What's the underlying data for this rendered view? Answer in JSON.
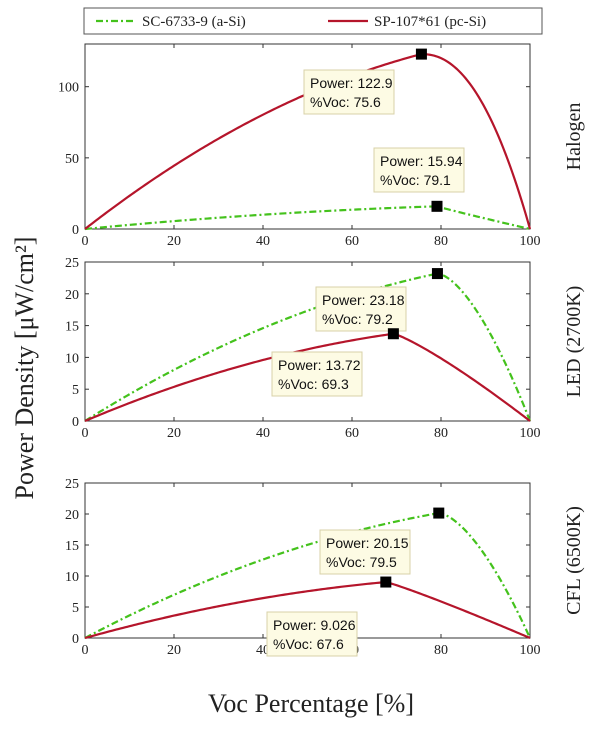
{
  "chart_data": {
    "type": "line",
    "ylabel": "Power Density [μW/cm²]",
    "xlabel": "Voc Percentage [%]",
    "legend": {
      "placement": "top",
      "entries": [
        {
          "name": "SC-6733-9 (a-Si)",
          "color": "#44c21c",
          "style": "dash-dot"
        },
        {
          "name": "SP-107*61 (pc-Si)",
          "color": "#b5152b",
          "style": "solid"
        }
      ]
    },
    "panels": [
      {
        "label": "Halogen",
        "xlim": [
          0,
          100
        ],
        "ylim": [
          0,
          130
        ],
        "xticks": [
          0,
          20,
          40,
          60,
          80,
          100
        ],
        "yticks": [
          0,
          50,
          100
        ],
        "series": [
          {
            "name": "SC-6733-9 (a-Si)",
            "peak": {
              "x": 79.1,
              "y": 15.94
            },
            "shape": 0.95
          },
          {
            "name": "SP-107*61 (pc-Si)",
            "peak": {
              "x": 75.6,
              "y": 122.9
            },
            "shape": 2.2
          }
        ],
        "annotations": [
          {
            "power_label": "Power: 122.9",
            "voc_label": "%Voc: 75.6",
            "x": 75.6,
            "y": 122.9
          },
          {
            "power_label": "Power: 15.94",
            "voc_label": "%Voc: 79.1",
            "x": 79.1,
            "y": 15.94
          }
        ]
      },
      {
        "label": "LED (2700K)",
        "xlim": [
          0,
          100
        ],
        "ylim": [
          0,
          25
        ],
        "xticks": [
          0,
          20,
          40,
          60,
          80,
          100
        ],
        "yticks": [
          0,
          5,
          10,
          15,
          20,
          25
        ],
        "series": [
          {
            "name": "SC-6733-9 (a-Si)",
            "peak": {
              "x": 79.2,
              "y": 23.18
            },
            "shape": 1.6
          },
          {
            "name": "SP-107*61 (pc-Si)",
            "peak": {
              "x": 69.3,
              "y": 13.72
            },
            "shape": 1.2
          }
        ],
        "annotations": [
          {
            "power_label": "Power: 23.18",
            "voc_label": "%Voc: 79.2",
            "x": 79.2,
            "y": 23.18
          },
          {
            "power_label": "Power: 13.72",
            "voc_label": "%Voc: 69.3",
            "x": 69.3,
            "y": 13.72
          }
        ]
      },
      {
        "label": "CFL (6500K)",
        "xlim": [
          0,
          100
        ],
        "ylim": [
          0,
          25
        ],
        "xticks": [
          0,
          20,
          40,
          60,
          80,
          100
        ],
        "yticks": [
          0,
          5,
          10,
          15,
          20,
          25
        ],
        "series": [
          {
            "name": "SC-6733-9 (a-Si)",
            "peak": {
              "x": 79.5,
              "y": 20.15
            },
            "shape": 1.6
          },
          {
            "name": "SP-107*61 (pc-Si)",
            "peak": {
              "x": 67.6,
              "y": 9.026
            },
            "shape": 1.1
          }
        ],
        "annotations": [
          {
            "power_label": "Power: 20.15",
            "voc_label": "%Voc: 79.5",
            "x": 79.5,
            "y": 20.15
          },
          {
            "power_label": "Power: 9.026",
            "voc_label": "%Voc: 67.6",
            "x": 67.6,
            "y": 9.026
          }
        ]
      }
    ]
  }
}
